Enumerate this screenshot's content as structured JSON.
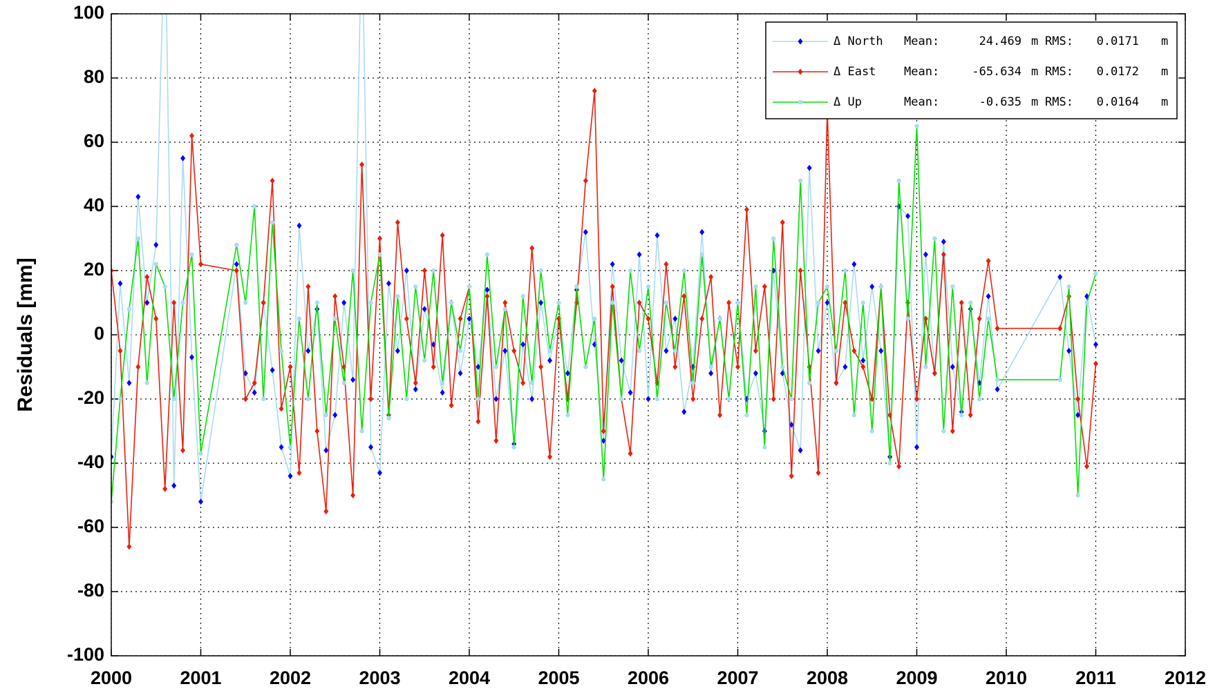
{
  "chart_data": {
    "type": "line",
    "y_label": "Residuals [mm]",
    "x": [
      2000.0,
      2000.1,
      2000.2,
      2000.3,
      2000.4,
      2000.5,
      2000.6,
      2000.7,
      2000.8,
      2000.9,
      2001.0,
      2001.4,
      2001.5,
      2001.6,
      2001.7,
      2001.8,
      2001.9,
      2002.0,
      2002.1,
      2002.2,
      2002.3,
      2002.4,
      2002.5,
      2002.6,
      2002.7,
      2002.8,
      2002.9,
      2003.0,
      2003.1,
      2003.2,
      2003.3,
      2003.4,
      2003.5,
      2003.6,
      2003.7,
      2003.8,
      2003.9,
      2004.0,
      2004.1,
      2004.2,
      2004.3,
      2004.4,
      2004.5,
      2004.6,
      2004.7,
      2004.8,
      2004.9,
      2005.0,
      2005.1,
      2005.2,
      2005.3,
      2005.4,
      2005.5,
      2005.6,
      2005.7,
      2005.8,
      2005.9,
      2006.0,
      2006.1,
      2006.2,
      2006.3,
      2006.4,
      2006.5,
      2006.6,
      2006.7,
      2006.8,
      2006.9,
      2007.0,
      2007.1,
      2007.2,
      2007.3,
      2007.4,
      2007.5,
      2007.6,
      2007.7,
      2007.8,
      2007.9,
      2008.0,
      2008.1,
      2008.2,
      2008.3,
      2008.4,
      2008.5,
      2008.6,
      2008.7,
      2008.8,
      2008.9,
      2009.0,
      2009.1,
      2009.2,
      2009.3,
      2009.4,
      2009.5,
      2009.6,
      2009.7,
      2009.8,
      2009.9,
      2010.6,
      2010.7,
      2010.8,
      2010.9,
      2011.0
    ],
    "series": [
      {
        "name": "Δ North",
        "color": "#a8dcf0",
        "marker_color": "#0000ff",
        "mean": 24.469,
        "rms": 0.0171,
        "values": [
          -38,
          16,
          -15,
          43,
          10,
          28,
          130,
          -47,
          55,
          -7,
          -52,
          22,
          -12,
          -18,
          10,
          -11,
          -35,
          -44,
          34,
          -5,
          8,
          -36,
          -25,
          10,
          -14,
          130,
          -35,
          -43,
          16,
          -5,
          20,
          -17,
          8,
          -3,
          -18,
          10,
          -12,
          5,
          -10,
          14,
          -20,
          -5,
          -34,
          -3,
          -20,
          10,
          -8,
          5,
          -12,
          14,
          32,
          -3,
          -33,
          22,
          -8,
          -18,
          25,
          -20,
          31,
          -5,
          5,
          -24,
          -10,
          32,
          -12,
          5,
          -20,
          10,
          -20,
          -12,
          -30,
          20,
          -12,
          -28,
          -36,
          52,
          -5,
          10,
          -15,
          -10,
          22,
          -8,
          15,
          -5,
          -38,
          40,
          37,
          -35,
          25,
          -12,
          29,
          -10,
          -24,
          8,
          -15,
          12,
          -17,
          18,
          -5,
          -25,
          12,
          -3
        ]
      },
      {
        "name": "Δ East",
        "color": "#e8200c",
        "marker_color": "#e8200c",
        "mean": -65.634,
        "rms": 0.0172,
        "values": [
          20,
          -5,
          -66,
          -10,
          18,
          5,
          -48,
          10,
          -36,
          62,
          22,
          20,
          -20,
          -15,
          10,
          48,
          -23,
          -10,
          -43,
          15,
          -30,
          -55,
          12,
          -10,
          -50,
          53,
          -20,
          30,
          -25,
          35,
          5,
          -15,
          20,
          -10,
          31,
          -22,
          5,
          15,
          -27,
          12,
          -33,
          10,
          -5,
          -15,
          27,
          -10,
          -38,
          5,
          -20,
          10,
          48,
          76,
          -30,
          15,
          -20,
          -37,
          10,
          5,
          -15,
          22,
          -10,
          12,
          -20,
          5,
          18,
          -25,
          10,
          -10,
          39,
          -5,
          15,
          -20,
          35,
          -44,
          20,
          -10,
          -43,
          70,
          -15,
          10,
          -5,
          -10,
          -20,
          15,
          -25,
          -41,
          10,
          -20,
          5,
          -12,
          25,
          -30,
          10,
          -25,
          5,
          23,
          2,
          2,
          12,
          -20,
          -41,
          -9
        ]
      },
      {
        "name": "Δ Up",
        "color": "#00e000",
        "marker_color": "#a8dcf0",
        "mean": -0.635,
        "rms": 0.0164,
        "values": [
          -52,
          -20,
          8,
          30,
          -15,
          22,
          15,
          -20,
          10,
          25,
          -37,
          28,
          10,
          40,
          -20,
          35,
          -5,
          -35,
          5,
          -20,
          10,
          -25,
          5,
          -15,
          20,
          -30,
          10,
          25,
          -26,
          12,
          -20,
          15,
          -8,
          20,
          -15,
          10,
          -5,
          15,
          -20,
          25,
          -10,
          8,
          -35,
          12,
          -15,
          20,
          -5,
          10,
          -25,
          15,
          -10,
          5,
          -45,
          10,
          -20,
          20,
          -5,
          15,
          -20,
          10,
          -5,
          20,
          -15,
          25,
          -10,
          5,
          -20,
          10,
          -25,
          15,
          -35,
          30,
          -10,
          -20,
          48,
          -15,
          10,
          15,
          -5,
          20,
          -25,
          10,
          -30,
          15,
          -40,
          48,
          5,
          65,
          -10,
          30,
          -30,
          15,
          -25,
          10,
          -20,
          5,
          -14,
          -14,
          15,
          -50,
          10,
          19
        ]
      }
    ],
    "legend_labels": {
      "mean": "Mean:",
      "unit": "m",
      "rms": "RMS:"
    },
    "legend": "upper right",
    "xlim": [
      2000,
      2012
    ],
    "xticks": [
      2000,
      2001,
      2002,
      2003,
      2004,
      2005,
      2006,
      2007,
      2008,
      2009,
      2010,
      2011,
      2012
    ],
    "ylim": [
      -100,
      100
    ],
    "yticks": [
      -100,
      -80,
      -60,
      -40,
      -20,
      0,
      20,
      40,
      60,
      80,
      100
    ],
    "grid": true
  }
}
